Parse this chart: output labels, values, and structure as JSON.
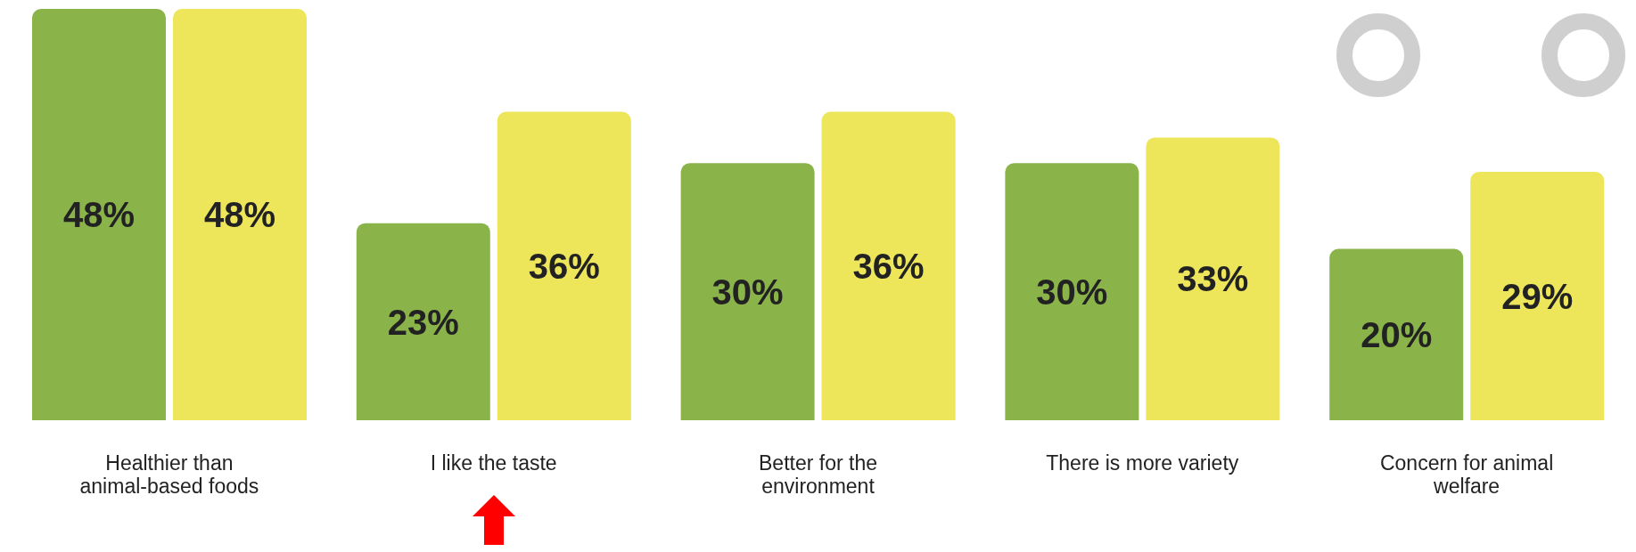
{
  "chart_data": {
    "type": "bar",
    "categories": [
      "Healthier than animal-based foods",
      "I like the taste",
      "Better for the environment",
      "There is more variety",
      "Concern for animal welfare"
    ],
    "series": [
      {
        "color": "#8ab34a",
        "values": [
          48,
          23,
          30,
          30,
          20
        ],
        "value_labels": [
          "48%",
          "23%",
          "30%",
          "30%",
          "20%"
        ]
      },
      {
        "color": "#ede55a",
        "values": [
          48,
          36,
          36,
          33,
          29
        ],
        "value_labels": [
          "48%",
          "36%",
          "36%",
          "33%",
          "29%"
        ]
      }
    ],
    "grid": false,
    "legend": false
  }
}
